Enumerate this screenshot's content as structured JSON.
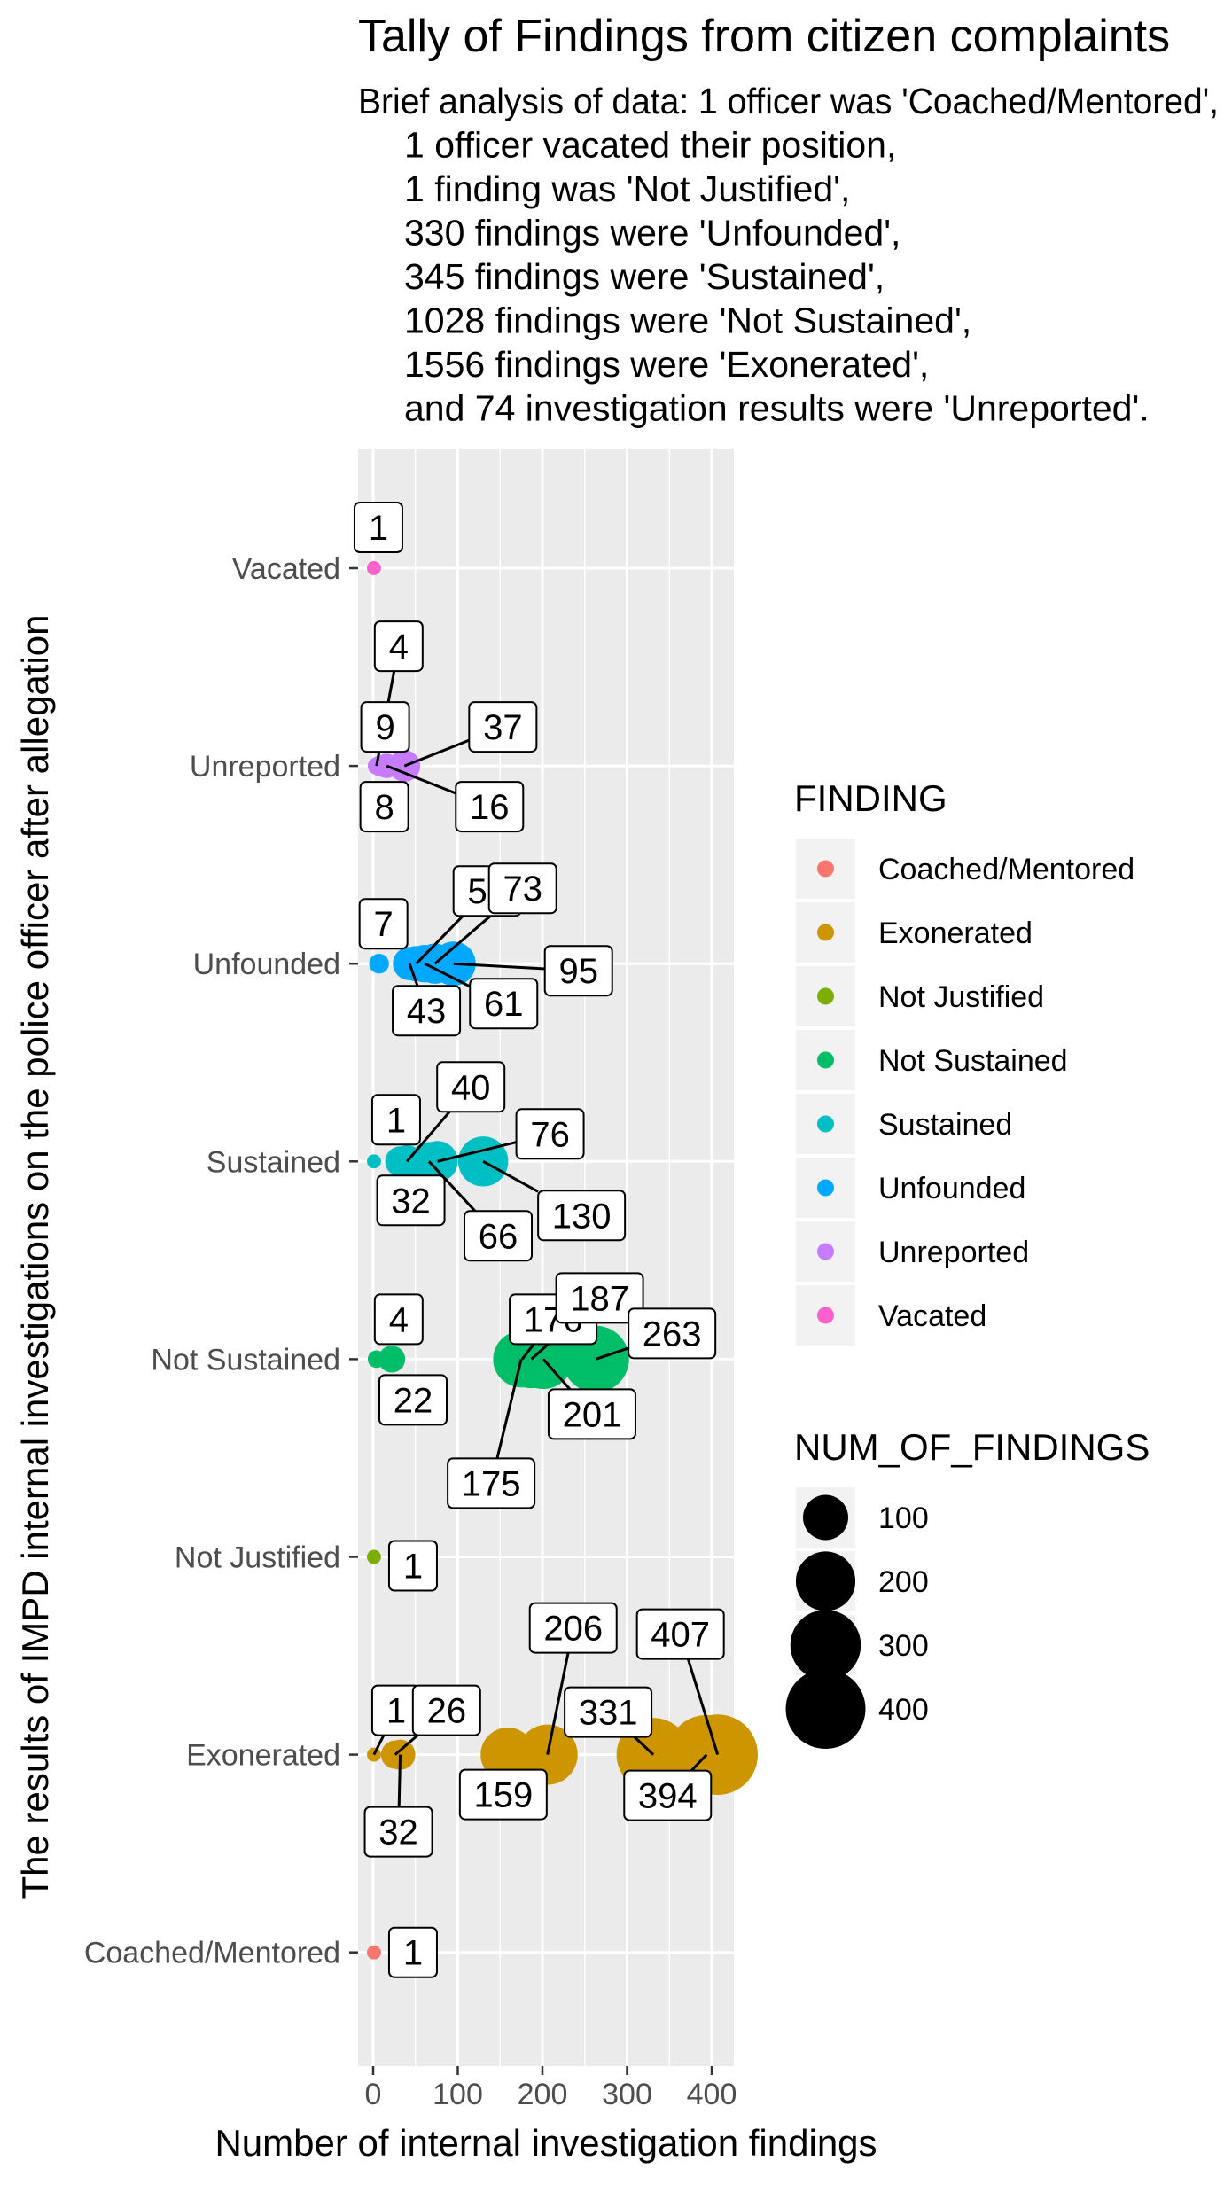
{
  "chart_data": {
    "type": "scatter",
    "title": "Tally of Findings from citizen complaints",
    "subtitle_lines": [
      "Brief analysis of data: 1 officer was 'Coached/Mentored',",
      "1 officer vacated their position,",
      "1 finding was 'Not Justified',",
      "330 findings were 'Unfounded',",
      "345 findings were 'Sustained',",
      "1028 findings were 'Not Sustained',",
      "1556 findings were 'Exonerated',",
      "and 74 investigation results were 'Unreported'."
    ],
    "xlabel": "Number of internal investigation findings",
    "ylabel": "The results of IMPD internal investigations on the police officer after allegation",
    "xlim": [
      -17,
      427
    ],
    "x_ticks": [
      0,
      100,
      200,
      300,
      400
    ],
    "x_tick_labels": [
      "0",
      "100",
      "200",
      "300",
      "400"
    ],
    "categories": [
      "Coached/Mentored",
      "Exonerated",
      "Not Justified",
      "Not Sustained",
      "Sustained",
      "Unfounded",
      "Unreported",
      "Vacated"
    ],
    "grid": true,
    "legend_position": "right",
    "colors": {
      "Coached/Mentored": "#F8766D",
      "Exonerated": "#CD9600",
      "Not Justified": "#7CAE00",
      "Not Sustained": "#00BE67",
      "Sustained": "#00BFC4",
      "Unfounded": "#00A9FF",
      "Unreported": "#C77CFF",
      "Vacated": "#FF61CC"
    },
    "color_legend": {
      "title": "FINDING",
      "entries": [
        "Coached/Mentored",
        "Exonerated",
        "Not Justified",
        "Not Sustained",
        "Sustained",
        "Unfounded",
        "Unreported",
        "Vacated"
      ]
    },
    "size_legend": {
      "title": "NUM_OF_FINDINGS",
      "breaks": [
        100,
        200,
        300,
        400
      ],
      "labels": [
        "100",
        "200",
        "300",
        "400"
      ]
    },
    "series": [
      {
        "name": "Coached/Mentored",
        "values": [
          1
        ]
      },
      {
        "name": "Exonerated",
        "values": [
          1,
          26,
          32,
          159,
          206,
          331,
          394,
          407
        ]
      },
      {
        "name": "Not Justified",
        "values": [
          1
        ]
      },
      {
        "name": "Not Sustained",
        "values": [
          4,
          22,
          175,
          176,
          187,
          201,
          263
        ]
      },
      {
        "name": "Sustained",
        "values": [
          1,
          32,
          40,
          66,
          76,
          130
        ]
      },
      {
        "name": "Unfounded",
        "values": [
          7,
          43,
          51,
          61,
          73,
          95
        ]
      },
      {
        "name": "Unreported",
        "values": [
          4,
          8,
          9,
          16,
          37
        ]
      },
      {
        "name": "Vacated",
        "values": [
          1
        ]
      }
    ],
    "point_labels": [
      {
        "category": "Vacated",
        "x": 1,
        "label": "1"
      },
      {
        "category": "Unreported",
        "x": 4,
        "label": "4"
      },
      {
        "category": "Unreported",
        "x": 9,
        "label": "9"
      },
      {
        "category": "Unreported",
        "x": 37,
        "label": "37"
      },
      {
        "category": "Unreported",
        "x": 8,
        "label": "8"
      },
      {
        "category": "Unreported",
        "x": 16,
        "label": "16"
      },
      {
        "category": "Unfounded",
        "x": 7,
        "label": "7"
      },
      {
        "category": "Unfounded",
        "x": 51,
        "label": "51"
      },
      {
        "category": "Unfounded",
        "x": 73,
        "label": "73"
      },
      {
        "category": "Unfounded",
        "x": 95,
        "label": "95"
      },
      {
        "category": "Unfounded",
        "x": 43,
        "label": "43"
      },
      {
        "category": "Unfounded",
        "x": 61,
        "label": "61"
      },
      {
        "category": "Sustained",
        "x": 1,
        "label": "1"
      },
      {
        "category": "Sustained",
        "x": 40,
        "label": "40"
      },
      {
        "category": "Sustained",
        "x": 76,
        "label": "76"
      },
      {
        "category": "Sustained",
        "x": 32,
        "label": "32"
      },
      {
        "category": "Sustained",
        "x": 66,
        "label": "66"
      },
      {
        "category": "Sustained",
        "x": 130,
        "label": "130"
      },
      {
        "category": "Not Sustained",
        "x": 4,
        "label": "4"
      },
      {
        "category": "Not Sustained",
        "x": 176,
        "label": "176"
      },
      {
        "category": "Not Sustained",
        "x": 187,
        "label": "187"
      },
      {
        "category": "Not Sustained",
        "x": 263,
        "label": "263"
      },
      {
        "category": "Not Sustained",
        "x": 22,
        "label": "22"
      },
      {
        "category": "Not Sustained",
        "x": 201,
        "label": "201"
      },
      {
        "category": "Not Sustained",
        "x": 175,
        "label": "175"
      },
      {
        "category": "Not Justified",
        "x": 1,
        "label": "1"
      },
      {
        "category": "Exonerated",
        "x": 206,
        "label": "206"
      },
      {
        "category": "Exonerated",
        "x": 407,
        "label": "407"
      },
      {
        "category": "Exonerated",
        "x": 1,
        "label": "1"
      },
      {
        "category": "Exonerated",
        "x": 26,
        "label": "26"
      },
      {
        "category": "Exonerated",
        "x": 331,
        "label": "331"
      },
      {
        "category": "Exonerated",
        "x": 159,
        "label": "159"
      },
      {
        "category": "Exonerated",
        "x": 394,
        "label": "394"
      },
      {
        "category": "Exonerated",
        "x": 32,
        "label": "32"
      },
      {
        "category": "Coached/Mentored",
        "x": 1,
        "label": "1"
      }
    ]
  }
}
